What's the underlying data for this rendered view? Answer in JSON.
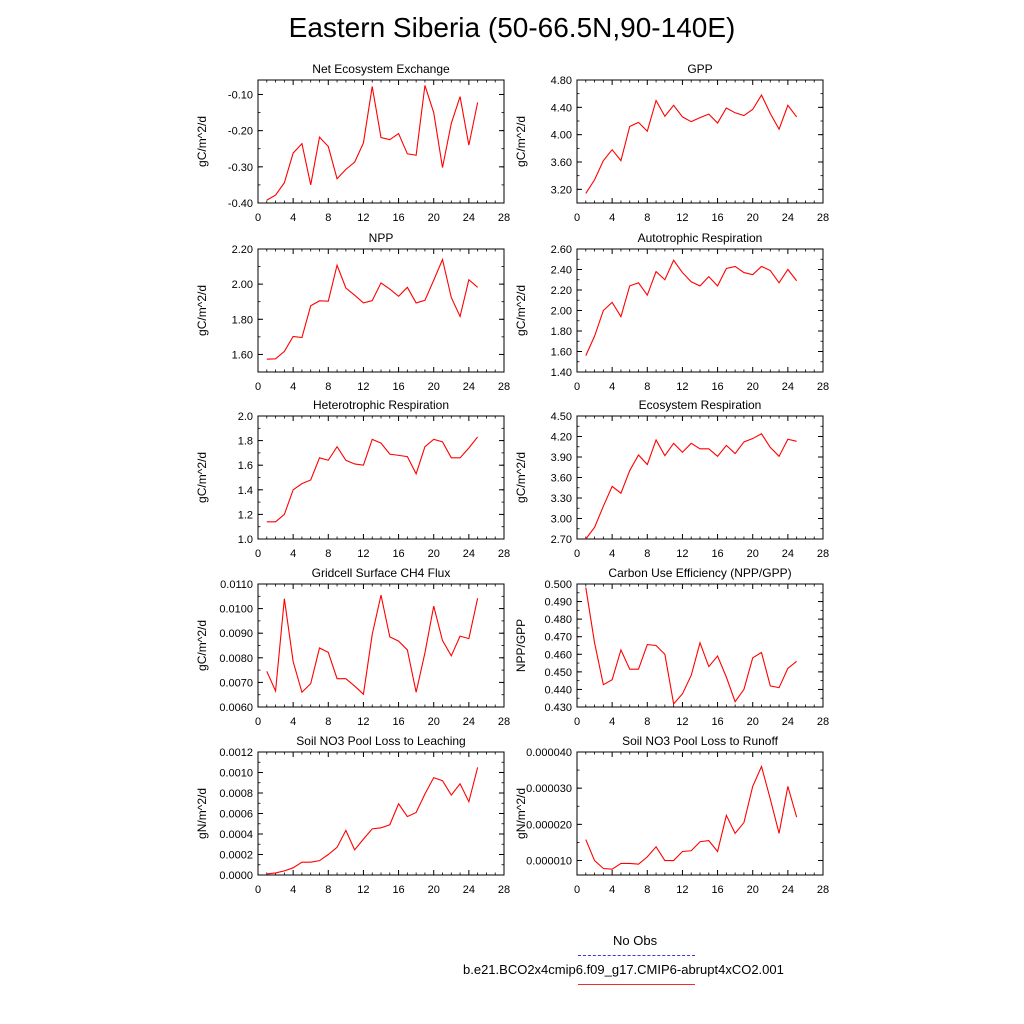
{
  "page": {
    "title": "Eastern Siberia (50-66.5N,90-140E)"
  },
  "legend": {
    "entries": [
      {
        "label": "No Obs",
        "color": "#3a3ad8",
        "style": "dashed"
      },
      {
        "label": "b.e21.BCO2x4cmip6.f09_g17.CMIP6-abrupt4xCO2.001",
        "color": "#e8302a",
        "style": "solid"
      }
    ]
  },
  "colors": {
    "series": "#ff0000",
    "axis": "#000000"
  },
  "chart_data": [
    {
      "type": "line",
      "title": "Net Ecosystem Exchange",
      "ylabel": "gC/m^2/d",
      "xlim": [
        0,
        28
      ],
      "xticks": [
        0,
        4,
        8,
        12,
        16,
        20,
        24,
        28
      ],
      "ylim": [
        -0.4,
        -0.06
      ],
      "yticks": [
        -0.4,
        -0.3,
        -0.2,
        -0.1
      ],
      "ytick_labels": [
        "-0.40",
        "-0.30",
        "-0.20",
        "-0.10"
      ],
      "x": [
        1,
        2,
        3,
        4,
        5,
        6,
        7,
        8,
        9,
        10,
        11,
        12,
        13,
        14,
        15,
        16,
        17,
        18,
        19,
        20,
        21,
        22,
        23,
        24,
        25
      ],
      "series": [
        {
          "color": "#ff0000",
          "values": [
            -0.392,
            -0.378,
            -0.344,
            -0.262,
            -0.236,
            -0.35,
            -0.218,
            -0.244,
            -0.333,
            -0.307,
            -0.287,
            -0.234,
            -0.078,
            -0.219,
            -0.225,
            -0.208,
            -0.264,
            -0.268,
            -0.075,
            -0.15,
            -0.302,
            -0.18,
            -0.106,
            -0.24,
            -0.122
          ]
        }
      ]
    },
    {
      "type": "line",
      "title": "GPP",
      "ylabel": "gC/m^2/d",
      "xlim": [
        0,
        28
      ],
      "xticks": [
        0,
        4,
        8,
        12,
        16,
        20,
        24,
        28
      ],
      "ylim": [
        3.0,
        4.8
      ],
      "yticks": [
        3.2,
        3.6,
        4.0,
        4.4,
        4.8
      ],
      "ytick_labels": [
        "3.20",
        "3.60",
        "4.00",
        "4.40",
        "4.80"
      ],
      "x": [
        1,
        2,
        3,
        4,
        5,
        6,
        7,
        8,
        9,
        10,
        11,
        12,
        13,
        14,
        15,
        16,
        17,
        18,
        19,
        20,
        21,
        22,
        23,
        24,
        25
      ],
      "series": [
        {
          "color": "#ff0000",
          "values": [
            3.14,
            3.34,
            3.62,
            3.78,
            3.62,
            4.12,
            4.18,
            4.05,
            4.5,
            4.27,
            4.43,
            4.26,
            4.19,
            4.25,
            4.3,
            4.17,
            4.39,
            4.32,
            4.28,
            4.37,
            4.58,
            4.31,
            4.08,
            4.43,
            4.26
          ]
        }
      ]
    },
    {
      "type": "line",
      "title": "NPP",
      "ylabel": "gC/m^2/d",
      "xlim": [
        0,
        28
      ],
      "xticks": [
        0,
        4,
        8,
        12,
        16,
        20,
        24,
        28
      ],
      "ylim": [
        1.5,
        2.2
      ],
      "yticks": [
        1.6,
        1.8,
        2.0,
        2.2
      ],
      "ytick_labels": [
        "1.60",
        "1.80",
        "2.00",
        "2.20"
      ],
      "x": [
        1,
        2,
        3,
        4,
        5,
        6,
        7,
        8,
        9,
        10,
        11,
        12,
        13,
        14,
        15,
        16,
        17,
        18,
        19,
        20,
        21,
        22,
        23,
        24,
        25
      ],
      "series": [
        {
          "color": "#ff0000",
          "values": [
            1.573,
            1.575,
            1.617,
            1.702,
            1.696,
            1.877,
            1.905,
            1.903,
            2.108,
            1.978,
            1.937,
            1.893,
            1.906,
            2.007,
            1.972,
            1.931,
            1.982,
            1.893,
            1.908,
            2.022,
            2.14,
            1.924,
            1.816,
            2.025,
            1.982
          ]
        }
      ]
    },
    {
      "type": "line",
      "title": "Autotrophic Respiration",
      "ylabel": "gC/m^2/d",
      "xlim": [
        0,
        28
      ],
      "xticks": [
        0,
        4,
        8,
        12,
        16,
        20,
        24,
        28
      ],
      "ylim": [
        1.4,
        2.6
      ],
      "yticks": [
        1.4,
        1.6,
        1.8,
        2.0,
        2.2,
        2.4,
        2.6
      ],
      "ytick_labels": [
        "1.40",
        "1.60",
        "1.80",
        "2.00",
        "2.20",
        "2.40",
        "2.60"
      ],
      "x": [
        1,
        2,
        3,
        4,
        5,
        6,
        7,
        8,
        9,
        10,
        11,
        12,
        13,
        14,
        15,
        16,
        17,
        18,
        19,
        20,
        21,
        22,
        23,
        24,
        25
      ],
      "series": [
        {
          "color": "#ff0000",
          "values": [
            1.56,
            1.75,
            2.0,
            2.08,
            1.94,
            2.24,
            2.27,
            2.15,
            2.38,
            2.3,
            2.49,
            2.37,
            2.28,
            2.24,
            2.33,
            2.24,
            2.41,
            2.43,
            2.37,
            2.35,
            2.43,
            2.39,
            2.27,
            2.4,
            2.29
          ]
        }
      ]
    },
    {
      "type": "line",
      "title": "Heterotrophic Respiration",
      "ylabel": "gC/m^2/d",
      "xlim": [
        0,
        28
      ],
      "xticks": [
        0,
        4,
        8,
        12,
        16,
        20,
        24,
        28
      ],
      "ylim": [
        1.0,
        2.0
      ],
      "yticks": [
        1.0,
        1.2,
        1.4,
        1.6,
        1.8,
        2.0
      ],
      "ytick_labels": [
        "1.0",
        "1.2",
        "1.4",
        "1.6",
        "1.8",
        "2.0"
      ],
      "x": [
        1,
        2,
        3,
        4,
        5,
        6,
        7,
        8,
        9,
        10,
        11,
        12,
        13,
        14,
        15,
        16,
        17,
        18,
        19,
        20,
        21,
        22,
        23,
        24,
        25
      ],
      "series": [
        {
          "color": "#ff0000",
          "values": [
            1.14,
            1.14,
            1.2,
            1.4,
            1.45,
            1.48,
            1.66,
            1.64,
            1.75,
            1.64,
            1.61,
            1.6,
            1.81,
            1.78,
            1.69,
            1.68,
            1.67,
            1.53,
            1.75,
            1.81,
            1.79,
            1.66,
            1.66,
            1.74,
            1.83
          ]
        }
      ]
    },
    {
      "type": "line",
      "title": "Ecosystem Respiration",
      "ylabel": "gC/m^2/d",
      "xlim": [
        0,
        28
      ],
      "xticks": [
        0,
        4,
        8,
        12,
        16,
        20,
        24,
        28
      ],
      "ylim": [
        2.7,
        4.5
      ],
      "yticks": [
        2.7,
        3.0,
        3.3,
        3.6,
        3.9,
        4.2,
        4.5
      ],
      "ytick_labels": [
        "2.70",
        "3.00",
        "3.30",
        "3.60",
        "3.90",
        "4.20",
        "4.50"
      ],
      "x": [
        1,
        2,
        3,
        4,
        5,
        6,
        7,
        8,
        9,
        10,
        11,
        12,
        13,
        14,
        15,
        16,
        17,
        18,
        19,
        20,
        21,
        22,
        23,
        24,
        25
      ],
      "series": [
        {
          "color": "#ff0000",
          "values": [
            2.7,
            2.87,
            3.18,
            3.47,
            3.37,
            3.7,
            3.93,
            3.79,
            4.15,
            3.92,
            4.1,
            3.97,
            4.1,
            4.02,
            4.02,
            3.91,
            4.07,
            3.95,
            4.12,
            4.17,
            4.24,
            4.04,
            3.91,
            4.16,
            4.13
          ]
        }
      ]
    },
    {
      "type": "line",
      "title": "Gridcell Surface CH4 Flux",
      "ylabel": "gC/m^2/d",
      "xlim": [
        0,
        28
      ],
      "xticks": [
        0,
        4,
        8,
        12,
        16,
        20,
        24,
        28
      ],
      "ylim": [
        0.006,
        0.011
      ],
      "yticks": [
        0.006,
        0.007,
        0.008,
        0.009,
        0.01,
        0.011
      ],
      "ytick_labels": [
        "0.0060",
        "0.0070",
        "0.0080",
        "0.0090",
        "0.0100",
        "0.0110"
      ],
      "x": [
        1,
        2,
        3,
        4,
        5,
        6,
        7,
        8,
        9,
        10,
        11,
        12,
        13,
        14,
        15,
        16,
        17,
        18,
        19,
        20,
        21,
        22,
        23,
        24,
        25
      ],
      "series": [
        {
          "color": "#ff0000",
          "values": [
            0.00745,
            0.00665,
            0.0104,
            0.00785,
            0.0066,
            0.00695,
            0.0084,
            0.00822,
            0.00715,
            0.00715,
            0.00685,
            0.00652,
            0.00895,
            0.01055,
            0.00885,
            0.00868,
            0.00832,
            0.0066,
            0.0082,
            0.0101,
            0.0087,
            0.00808,
            0.00888,
            0.00878,
            0.01042
          ]
        }
      ]
    },
    {
      "type": "line",
      "title": "Carbon Use Efficiency (NPP/GPP)",
      "ylabel": "NPP/GPP",
      "xlim": [
        0,
        28
      ],
      "xticks": [
        0,
        4,
        8,
        12,
        16,
        20,
        24,
        28
      ],
      "ylim": [
        0.43,
        0.5
      ],
      "yticks": [
        0.43,
        0.44,
        0.45,
        0.46,
        0.47,
        0.48,
        0.49,
        0.5
      ],
      "ytick_labels": [
        "0.430",
        "0.440",
        "0.450",
        "0.460",
        "0.470",
        "0.480",
        "0.490",
        "0.500"
      ],
      "x": [
        1,
        2,
        3,
        4,
        5,
        6,
        7,
        8,
        9,
        10,
        11,
        12,
        13,
        14,
        15,
        16,
        17,
        18,
        19,
        20,
        21,
        22,
        23,
        24,
        25
      ],
      "series": [
        {
          "color": "#ff0000",
          "values": [
            0.498,
            0.4665,
            0.4427,
            0.4455,
            0.4625,
            0.4515,
            0.4515,
            0.4655,
            0.465,
            0.46,
            0.4318,
            0.4375,
            0.448,
            0.4665,
            0.453,
            0.459,
            0.447,
            0.433,
            0.44,
            0.458,
            0.461,
            0.442,
            0.441,
            0.452,
            0.456
          ]
        }
      ]
    },
    {
      "type": "line",
      "title": "Soil NO3 Pool Loss to Leaching",
      "ylabel": "gN/m^2/d",
      "xlim": [
        0,
        28
      ],
      "xticks": [
        0,
        4,
        8,
        12,
        16,
        20,
        24,
        28
      ],
      "ylim": [
        0.0,
        0.0012
      ],
      "yticks": [
        0.0,
        0.0002,
        0.0004,
        0.0006,
        0.0008,
        0.001,
        0.0012
      ],
      "ytick_labels": [
        "0.0000",
        "0.0002",
        "0.0004",
        "0.0006",
        "0.0008",
        "0.0010",
        "0.0012"
      ],
      "x": [
        1,
        2,
        3,
        4,
        5,
        6,
        7,
        8,
        9,
        10,
        11,
        12,
        13,
        14,
        15,
        16,
        17,
        18,
        19,
        20,
        21,
        22,
        23,
        24,
        25
      ],
      "series": [
        {
          "color": "#ff0000",
          "values": [
            1e-05,
            2e-05,
            4e-05,
            7e-05,
            0.000125,
            0.000125,
            0.00014,
            0.0002,
            0.00027,
            0.000435,
            0.000245,
            0.00035,
            0.00045,
            0.00046,
            0.00049,
            0.000695,
            0.00057,
            0.00061,
            0.00079,
            0.00095,
            0.00092,
            0.00078,
            0.00089,
            0.000715,
            0.00105
          ]
        }
      ]
    },
    {
      "type": "line",
      "title": "Soil NO3 Pool Loss to Runoff",
      "ylabel": "gN/m^2/d",
      "xlim": [
        0,
        28
      ],
      "xticks": [
        0,
        4,
        8,
        12,
        16,
        20,
        24,
        28
      ],
      "ylim": [
        6e-06,
        4e-05
      ],
      "yticks": [
        1e-05,
        2e-05,
        3e-05,
        4e-05
      ],
      "ytick_labels": [
        "0.000010",
        "0.000020",
        "0.000030",
        "0.000040"
      ],
      "x": [
        1,
        2,
        3,
        4,
        5,
        6,
        7,
        8,
        9,
        10,
        11,
        12,
        13,
        14,
        15,
        16,
        17,
        18,
        19,
        20,
        21,
        22,
        23,
        24,
        25
      ],
      "series": [
        {
          "color": "#ff0000",
          "values": [
            1.58e-05,
            1e-05,
            7.8e-06,
            7.6e-06,
            9.2e-06,
            9.2e-06,
            9e-06,
            1.1e-05,
            1.38e-05,
            1e-05,
            1e-05,
            1.25e-05,
            1.27e-05,
            1.52e-05,
            1.55e-05,
            1.25e-05,
            2.25e-05,
            1.75e-05,
            2.05e-05,
            3.05e-05,
            3.6e-05,
            2.7e-05,
            1.75e-05,
            3.05e-05,
            2.2e-05
          ]
        }
      ]
    }
  ]
}
